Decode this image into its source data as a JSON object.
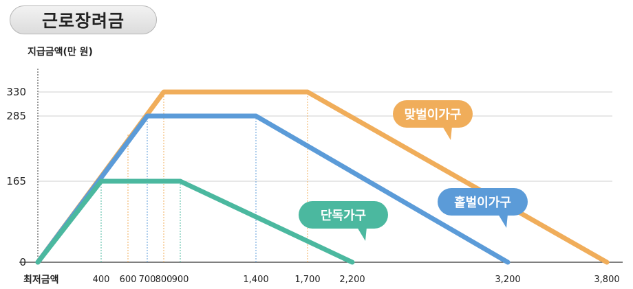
{
  "title": "근로장려금",
  "chart_data": {
    "type": "line",
    "ylabel": "지급금액(만 원)",
    "x_zero_label": "최저금액",
    "x_ticks": [
      400,
      600,
      700,
      800,
      900,
      1400,
      1700,
      2200,
      3200,
      3800
    ],
    "x_tick_labels": [
      "400",
      "600",
      "700",
      "800",
      "900",
      "1,400",
      "1,700",
      "2,200",
      "3,200",
      "3,800"
    ],
    "y_ticks": [
      0,
      165,
      285,
      330
    ],
    "y_tick_labels": [
      "0",
      "165",
      "285",
      "330"
    ],
    "grid": true,
    "series": [
      {
        "name": "맞벌이가구",
        "color": "#f0ad5a",
        "x": [
          0,
          800,
          1700,
          3800
        ],
        "y": [
          0,
          330,
          330,
          0
        ]
      },
      {
        "name": "홑벌이가구",
        "color": "#5b9bd8",
        "x": [
          0,
          700,
          1400,
          3200
        ],
        "y": [
          0,
          285,
          285,
          0
        ]
      },
      {
        "name": "단독가구",
        "color": "#4bb89f",
        "x": [
          0,
          400,
          900,
          2200
        ],
        "y": [
          0,
          165,
          165,
          0
        ]
      }
    ]
  }
}
